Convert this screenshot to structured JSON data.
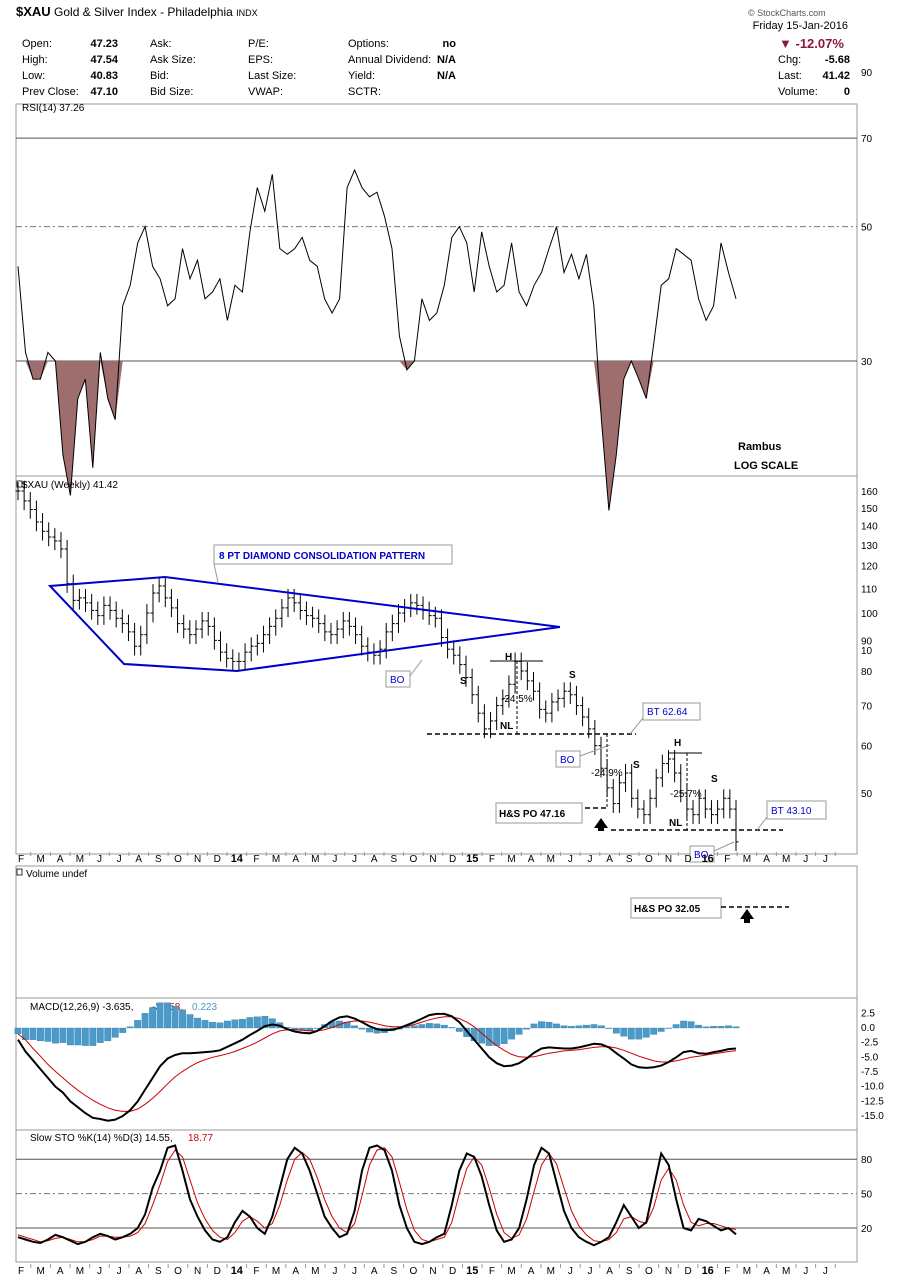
{
  "header": {
    "symbol": "$XAU",
    "name": "Gold & Silver Index - Philadelphia",
    "exchange": "INDX",
    "watermark": "© StockCharts.com",
    "date": "Friday 15-Jan-2016",
    "pct_change": "-12.07%",
    "chg_label": "Chg:",
    "chg_value": "-5.68",
    "last_label": "Last:",
    "last_value": "41.42",
    "volume_label": "Volume:",
    "volume_value": "0",
    "quote_cols": [
      [
        [
          "Open:",
          "47.23"
        ],
        [
          "High:",
          "47.54"
        ],
        [
          "Low:",
          "40.83"
        ],
        [
          "Prev Close:",
          "47.10"
        ]
      ],
      [
        [
          "Ask:",
          ""
        ],
        [
          "Ask Size:",
          ""
        ],
        [
          "Bid:",
          ""
        ],
        [
          "Bid Size:",
          ""
        ]
      ],
      [
        [
          "P/E:",
          ""
        ],
        [
          "EPS:",
          ""
        ],
        [
          "Last Size:",
          ""
        ],
        [
          "VWAP:",
          ""
        ]
      ],
      [
        [
          "Options:",
          "no"
        ],
        [
          "Annual Dividend:",
          "N/A"
        ],
        [
          "Yield:",
          "N/A"
        ],
        [
          "SCTR:",
          ""
        ]
      ]
    ],
    "colors": {
      "down": "#8b1a3a",
      "price_line": "#0000cc",
      "signal": "#cc0000",
      "histogram": "#4a9bc9",
      "rsi_fill": "#9e6e6e"
    }
  },
  "x_axis": {
    "months": [
      "F",
      "M",
      "A",
      "M",
      "J",
      "J",
      "A",
      "S",
      "O",
      "N",
      "D",
      "14",
      "F",
      "M",
      "A",
      "M",
      "J",
      "J",
      "A",
      "S",
      "O",
      "N",
      "D",
      "15",
      "F",
      "M",
      "A",
      "M",
      "J",
      "J",
      "A",
      "S",
      "O",
      "N",
      "D",
      "16",
      "F",
      "M",
      "A",
      "M",
      "J",
      "J"
    ]
  },
  "chart_data": [
    {
      "type": "line",
      "title": "RSI(14) 37.26",
      "ylim": [
        0,
        100
      ],
      "scale": "log",
      "yticks": [
        90,
        70,
        50,
        30,
        10
      ],
      "overbought": 70,
      "oversold": 30,
      "midline": 50,
      "notes": [
        "Rambus",
        "LOG SCALE"
      ],
      "values": [
        43,
        31,
        28,
        28,
        31,
        30,
        21,
        18,
        26,
        28,
        20,
        31,
        26,
        24,
        37,
        40,
        47,
        50,
        43,
        41,
        37,
        38,
        46,
        41,
        44,
        38,
        39,
        41,
        35,
        40,
        39,
        49,
        58,
        53,
        61,
        46,
        45,
        46,
        48,
        44,
        43,
        38,
        36,
        38,
        58,
        62,
        58,
        56,
        57,
        52,
        46,
        33,
        29,
        30,
        38,
        35,
        36,
        40,
        48,
        50,
        47,
        39,
        49,
        43,
        39,
        40,
        47,
        39,
        37,
        40,
        42,
        46,
        50,
        42,
        45,
        41,
        45,
        37,
        24,
        17,
        21,
        28,
        30,
        28,
        26,
        32,
        40,
        41,
        46,
        45,
        44,
        38,
        35,
        37,
        47,
        42,
        38
      ]
    },
    {
      "type": "bar",
      "title": "$XAU (Weekly) 41.42",
      "scale": "log",
      "ylim": [
        41,
        165
      ],
      "yticks": [
        160,
        150,
        140,
        130,
        120,
        110,
        100,
        90,
        80,
        70,
        60,
        50
      ],
      "closes": [
        160,
        154,
        149,
        142,
        137,
        134,
        132,
        128,
        112,
        105,
        106,
        104,
        101,
        99,
        103,
        101,
        98,
        96,
        93,
        88,
        92,
        100,
        108,
        111,
        106,
        102,
        96,
        94,
        92,
        94,
        97,
        95,
        90,
        86,
        84,
        83,
        83,
        86,
        88,
        89,
        92,
        95,
        98,
        102,
        106,
        104,
        101,
        99,
        98,
        96,
        93,
        92,
        94,
        97,
        95,
        92,
        88,
        86,
        85,
        87,
        93,
        96,
        100,
        102,
        104,
        103,
        101,
        99,
        98,
        91,
        87,
        85,
        82,
        78,
        73,
        68,
        64,
        66,
        70,
        72,
        76,
        83,
        80,
        77,
        74,
        69,
        68,
        71,
        72,
        74,
        73,
        70,
        67,
        64,
        60,
        55,
        51,
        48,
        52,
        54,
        49,
        47,
        46,
        49,
        53,
        56,
        57,
        54,
        50,
        47,
        46,
        49,
        47,
        46,
        47,
        49,
        47,
        41.42
      ],
      "patterns": {
        "diamond_label": "8 PT DIAMOND CONSOLIDATION PATTERN",
        "callouts": [
          "BO",
          "BO",
          "BO"
        ],
        "bt1": "BT 62.64",
        "bt2": "BT 43.10",
        "hs1_target": "H&S PO 47.16",
        "hs2_target": "H&S PO 32.05",
        "pct1": "-24.5%",
        "pct2": "-24.9%",
        "pct3": "-25.7%",
        "s_label": "S",
        "h_label": "H",
        "nl_label": "NL"
      }
    },
    {
      "type": "bar",
      "title": "Volume undef",
      "values": []
    },
    {
      "type": "line",
      "title": "MACD(12,26,9) -3.635, -3.858, 0.223",
      "title_macd": "MACD(12,26,9) -3.635,",
      "title_signal": "-3.858,",
      "title_hist": "0.223",
      "ylim": [
        -16,
        3
      ],
      "yticks": [
        2.5,
        0.0,
        -2.5,
        -5.0,
        -7.5,
        -10.0,
        -12.5,
        -15.0
      ],
      "ytick_labels": [
        "2.5",
        "0.0",
        "-2.5",
        "-5.0",
        "-7.5",
        "-10.0",
        "-12.5",
        "-15.0"
      ],
      "series": [
        {
          "values": [
            -2,
            -4,
            -5.5,
            -7,
            -8.5,
            -10,
            -11,
            -12.5,
            -13.5,
            -14.5,
            -15.3,
            -15.5,
            -15.8,
            -15.6,
            -15,
            -14,
            -12.5,
            -10.5,
            -8.5,
            -6.5,
            -5.2,
            -4.6,
            -4.3,
            -4.3,
            -4.2,
            -4.1,
            -4.0,
            -3.8,
            -3.2,
            -2.6,
            -2.0,
            -1.2,
            -0.5,
            0.3,
            0.6,
            0.4,
            -0.2,
            -0.6,
            -0.8,
            -0.9,
            -0.5,
            0.3,
            1.2,
            1.8,
            2.0,
            1.6,
            1.0,
            0.3,
            -0.2,
            -0.4,
            -0.3,
            0,
            0.5,
            1.0,
            1.6,
            2.2,
            2.4,
            2.4,
            2.0,
            1.0,
            -0.5,
            -2,
            -3.5,
            -5,
            -6,
            -6.5,
            -6.4,
            -6.0,
            -5.2,
            -4.2,
            -3.5,
            -3.3,
            -3.4,
            -3.5,
            -3.5,
            -3.3,
            -3.0,
            -2.7,
            -2.8,
            -3.3,
            -4.3,
            -5.2,
            -6.2,
            -6.7,
            -6.8,
            -6.7,
            -6.4,
            -5.8,
            -5.0,
            -4.1,
            -3.9,
            -4.3,
            -4.4,
            -4.1,
            -3.9,
            -3.6,
            -3.5
          ]
        },
        {
          "values": [
            -1,
            -2,
            -3.5,
            -4.8,
            -6.2,
            -7.4,
            -8.5,
            -9.6,
            -10.6,
            -11.5,
            -12.3,
            -13,
            -13.6,
            -14,
            -14.2,
            -14.2,
            -13.8,
            -13,
            -12,
            -10.8,
            -9.5,
            -8.3,
            -7.4,
            -6.6,
            -5.9,
            -5.4,
            -5.0,
            -4.7,
            -4.4,
            -4.0,
            -3.5,
            -3.0,
            -2.4,
            -1.7,
            -1.0,
            -0.5,
            -0.3,
            -0.3,
            -0.4,
            -0.5,
            -0.5,
            -0.3,
            0.1,
            0.6,
            1.0,
            1.2,
            1.2,
            1.0,
            0.7,
            0.4,
            0.2,
            0.2,
            0.3,
            0.6,
            1.0,
            1.4,
            1.7,
            1.9,
            1.9,
            1.6,
            1.0,
            0.2,
            -0.9,
            -2.0,
            -3.0,
            -3.8,
            -4.5,
            -4.9,
            -5.0,
            -4.9,
            -4.6,
            -4.3,
            -4.1,
            -3.9,
            -3.8,
            -3.7,
            -3.5,
            -3.3,
            -3.2,
            -3.2,
            -3.4,
            -3.8,
            -4.3,
            -4.8,
            -5.2,
            -5.6,
            -5.8,
            -5.8,
            -5.6,
            -5.3,
            -5.0,
            -4.8,
            -4.6,
            -4.4,
            -4.2,
            -4.0,
            -3.86
          ]
        }
      ],
      "histogram": [
        -1,
        -2,
        -2,
        -2.2,
        -2.3,
        -2.6,
        -2.5,
        -2.9,
        -2.9,
        -3,
        -3,
        -2.5,
        -2.2,
        -1.6,
        -0.8,
        0.2,
        1.3,
        2.5,
        3.5,
        4.3,
        4.3,
        3.7,
        3.1,
        2.3,
        1.7,
        1.3,
        1.0,
        0.9,
        1.2,
        1.4,
        1.5,
        1.8,
        1.9,
        2.0,
        1.6,
        0.9,
        0.1,
        -0.3,
        -0.4,
        -0.4,
        0,
        0.6,
        1.1,
        1.2,
        1.0,
        0.4,
        -0.2,
        -0.7,
        -0.9,
        -0.8,
        -0.5,
        -0.2,
        0.2,
        0.4,
        0.6,
        0.8,
        0.7,
        0.5,
        0.1,
        -0.6,
        -1.5,
        -2.2,
        -2.6,
        -3.0,
        -3.0,
        -2.7,
        -1.9,
        -1.1,
        -0.2,
        0.7,
        1.1,
        1.0,
        0.7,
        0.4,
        0.3,
        0.4,
        0.5,
        0.6,
        0.4,
        -0.1,
        -0.9,
        -1.4,
        -1.9,
        -1.9,
        -1.6,
        -1.1,
        -0.6,
        0,
        0.6,
        1.2,
        1.1,
        0.5,
        0.2,
        0.3,
        0.3,
        0.4,
        0.22
      ]
    },
    {
      "type": "line",
      "title": "Slow STO %K(14) %D(3) 14.55, 18.77",
      "title_k": "Slow STO %K(14) %D(3) 14.55,",
      "title_d": "18.77",
      "ylim": [
        0,
        100
      ],
      "yticks": [
        80,
        50,
        20
      ],
      "series": [
        {
          "values": [
            12,
            10,
            8,
            7,
            10,
            14,
            12,
            9,
            6,
            8,
            12,
            15,
            13,
            10,
            12,
            15,
            20,
            32,
            55,
            70,
            90,
            92,
            70,
            45,
            30,
            18,
            10,
            8,
            12,
            25,
            35,
            30,
            20,
            15,
            30,
            55,
            80,
            90,
            85,
            70,
            50,
            30,
            20,
            12,
            15,
            35,
            70,
            90,
            92,
            88,
            70,
            40,
            20,
            8,
            6,
            8,
            12,
            15,
            40,
            70,
            85,
            82,
            65,
            40,
            18,
            8,
            10,
            20,
            45,
            75,
            90,
            85,
            60,
            35,
            20,
            12,
            8,
            5,
            8,
            12,
            25,
            40,
            30,
            20,
            25,
            55,
            85,
            75,
            45,
            20,
            18,
            28,
            26,
            22,
            18,
            20,
            14.55
          ]
        },
        {
          "values": [
            14,
            12,
            10,
            8,
            9,
            11,
            12,
            10,
            8,
            8,
            10,
            13,
            13,
            12,
            12,
            13,
            16,
            24,
            40,
            58,
            78,
            88,
            82,
            62,
            42,
            28,
            18,
            12,
            10,
            16,
            26,
            30,
            26,
            20,
            24,
            40,
            62,
            80,
            86,
            80,
            64,
            45,
            30,
            20,
            16,
            24,
            48,
            75,
            88,
            90,
            82,
            60,
            36,
            18,
            10,
            8,
            10,
            12,
            25,
            50,
            72,
            82,
            75,
            55,
            32,
            16,
            11,
            14,
            28,
            52,
            75,
            85,
            76,
            55,
            35,
            22,
            14,
            9,
            8,
            10,
            16,
            28,
            30,
            26,
            24,
            38,
            62,
            72,
            62,
            40,
            25,
            22,
            24,
            24,
            22,
            20,
            18.77
          ]
        }
      ]
    }
  ]
}
